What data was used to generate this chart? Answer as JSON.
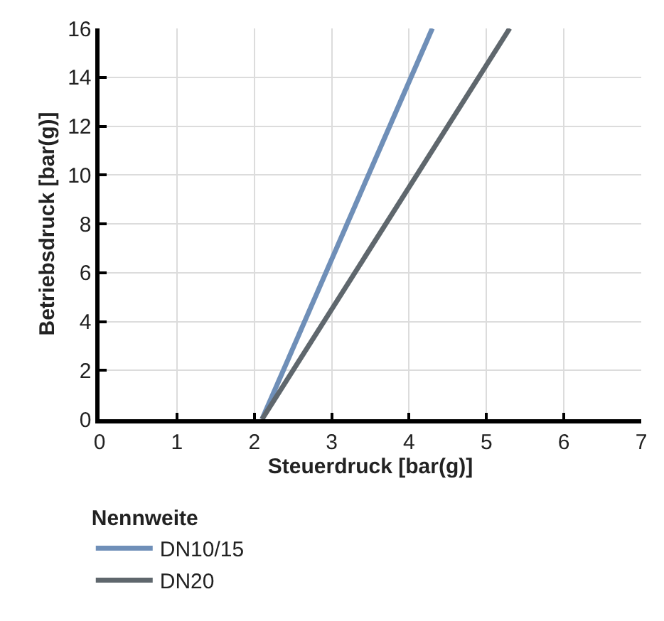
{
  "chart_data": {
    "type": "line",
    "xlabel": "Steuerdruck [bar(g)]",
    "ylabel": "Betriebsdruck [bar(g)]",
    "legend_title": "Nennweite",
    "series": [
      {
        "name": "DN10/15",
        "color": "#6f8fb8",
        "x": [
          2.1,
          4.3
        ],
        "values": [
          0,
          16
        ]
      },
      {
        "name": "DN20",
        "color": "#5f676d",
        "x": [
          2.1,
          5.3
        ],
        "values": [
          0,
          16
        ]
      }
    ],
    "xlim": [
      0,
      7
    ],
    "xticks": [
      0,
      1,
      2,
      3,
      4,
      5,
      6,
      7
    ],
    "ylim": [
      0,
      16
    ],
    "yticks": [
      0,
      2,
      4,
      6,
      8,
      10,
      12,
      14,
      16
    ],
    "grid": true,
    "legend": "bottom left",
    "marker": "none",
    "line_style": "solid"
  }
}
